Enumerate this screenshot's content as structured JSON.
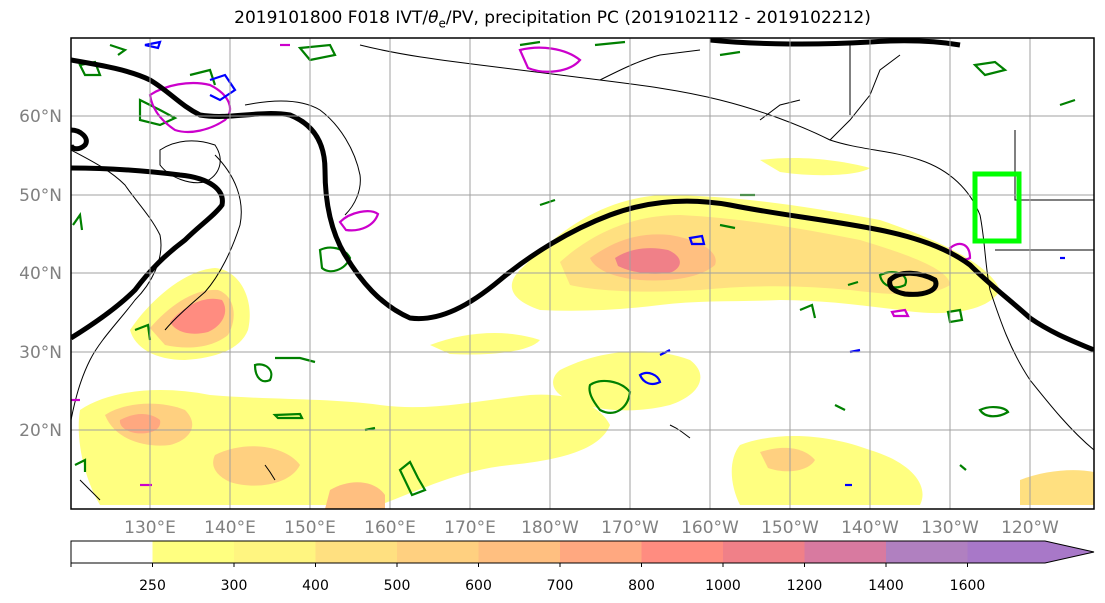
{
  "title": {
    "prefix": "2019101800 F018 IVT/",
    "theta": "θ",
    "theta_sub": "e",
    "suffix": "/PV, precipitation PC (2019102112 - 2019102212)"
  },
  "axes": {
    "lon_ticks": [
      "130°E",
      "140°E",
      "150°E",
      "160°E",
      "170°E",
      "180°W",
      "170°W",
      "160°W",
      "150°W",
      "140°W",
      "130°W",
      "120°W"
    ],
    "lat_ticks": [
      "60°N",
      "50°N",
      "40°N",
      "30°N",
      "20°N"
    ]
  },
  "colorbar": {
    "levels": [
      "250",
      "300",
      "400",
      "500",
      "600",
      "700",
      "800",
      "1000",
      "1200",
      "1400",
      "1600"
    ],
    "colors": [
      "#ffffff",
      "#ffff80",
      "#fff580",
      "#ffe080",
      "#ffd080",
      "#ffbf80",
      "#ffa880",
      "#ff8c80",
      "#f08088",
      "#d87aa0",
      "#b080c0",
      "#a878c8"
    ]
  },
  "legend_colors": {
    "streamline": "#000000",
    "pv_contour": "#008000",
    "theta_contour": "#cc00cc",
    "ivt_contour": "#0000ff",
    "target_box": "#00ff00"
  }
}
